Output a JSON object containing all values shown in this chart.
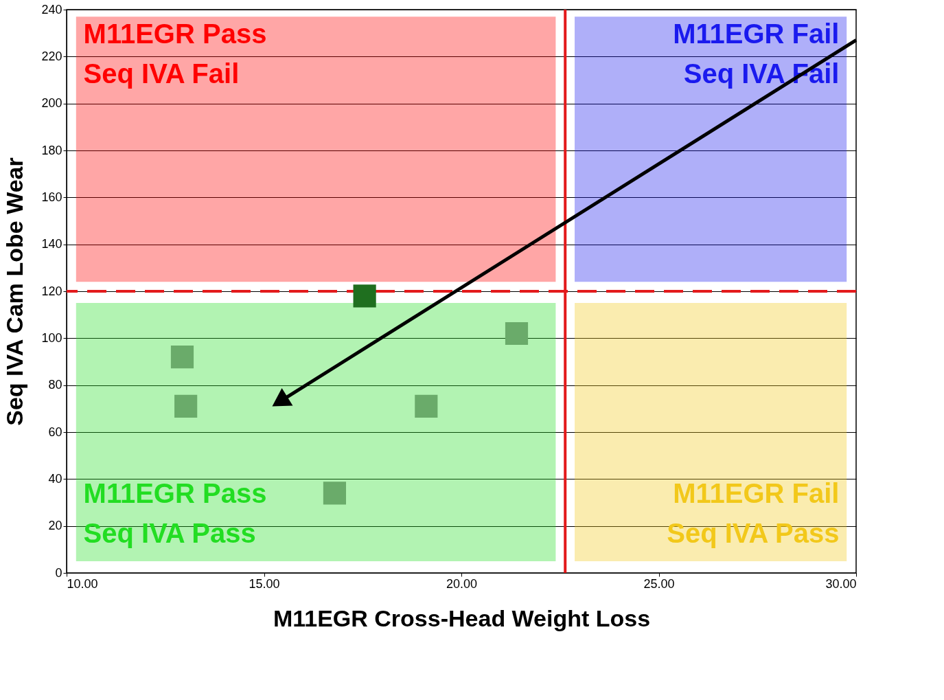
{
  "chart_data": {
    "type": "scatter",
    "xlabel": "M11EGR Cross-Head Weight Loss",
    "ylabel": "Seq IVA Cam Lobe Wear",
    "xlim": [
      10,
      30
    ],
    "ylim": [
      0,
      240
    ],
    "xticks": [
      {
        "value": 10,
        "label": "10.00"
      },
      {
        "value": 15,
        "label": "15.00"
      },
      {
        "value": 20,
        "label": "20.00"
      },
      {
        "value": 25,
        "label": "25.00"
      },
      {
        "value": 30,
        "label": "30.00"
      }
    ],
    "yticks": [
      0,
      20,
      40,
      60,
      80,
      100,
      120,
      140,
      160,
      180,
      200,
      220,
      240
    ],
    "grid": "y",
    "marker": "square",
    "series": [
      {
        "x": [
          17.55,
          21.4,
          12.93,
          13.02,
          19.11,
          16.79
        ],
        "values": [
          118,
          102,
          92,
          71,
          71,
          34
        ],
        "colors": [
          "#1f6f1f",
          "#6aab6a",
          "#6aab6a",
          "#6aab6a",
          "#6aab6a",
          "#6aab6a"
        ]
      },
      {
        "type": "line",
        "x": [
          30,
          15.4
        ],
        "values": [
          227,
          73
        ],
        "color": "#000000",
        "marker": "triangle"
      }
    ],
    "ref_lines": [
      {
        "axis": "y",
        "value": 120,
        "color": "#e31a1c",
        "line_style": "dashed"
      },
      {
        "axis": "x",
        "value": 22.63,
        "color": "#e31a1c",
        "line_style": "solid"
      }
    ],
    "bands": [
      {
        "axis": "y",
        "from": 124,
        "to": 237,
        "color": "#ff0000",
        "label": "M11EGR Pass\nSeq IVA Fail"
      },
      {
        "axis": "y",
        "from": 124,
        "to": 237,
        "color": "#1a1aee",
        "label": "M11EGR Fail\nSeq IVA Fail"
      },
      {
        "axis": "y",
        "from": 5,
        "to": 115,
        "color": "#22dd22",
        "label": "M11EGR Pass\nSeq IVA Pass"
      },
      {
        "axis": "y",
        "from": 5,
        "to": 115,
        "color": "#f2c81a",
        "label": "M11EGR Fail\nSeq IVA Pass"
      }
    ]
  }
}
